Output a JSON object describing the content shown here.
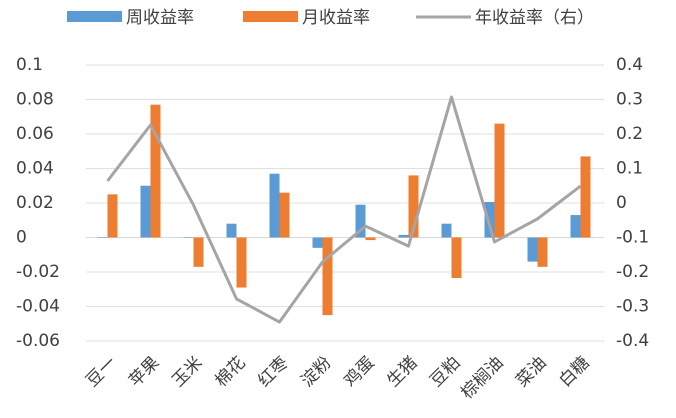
{
  "chart_data": {
    "type": "bar_line",
    "categories": [
      "豆一",
      "苹果",
      "玉米",
      "棉花",
      "红枣",
      "淀粉",
      "鸡蛋",
      "生猪",
      "豆粕",
      "棕榈油",
      "菜油",
      "白糖"
    ],
    "series": [
      {
        "name": "周收益率",
        "type": "bar",
        "color": "#5b9bd5",
        "values": [
          0,
          0.03,
          0,
          0.008,
          0.037,
          -0.006,
          0.019,
          0.0015,
          0.008,
          0.0206,
          -0.014,
          0.013
        ]
      },
      {
        "name": "月收益率",
        "type": "bar",
        "color": "#ed7d31",
        "values": [
          0.025,
          0.077,
          -0.017,
          -0.029,
          0.026,
          -0.045,
          -0.0015,
          0.036,
          -0.0235,
          0.066,
          -0.017,
          0.047
        ]
      },
      {
        "name": "年收益率（右）",
        "type": "line",
        "axis": "y2",
        "color": "#a5a5a5",
        "values": [
          0.064,
          0.226,
          -0.006,
          -0.278,
          -0.345,
          -0.171,
          -0.067,
          -0.125,
          0.307,
          -0.113,
          -0.046,
          0.049
        ]
      }
    ],
    "ylim": [
      -0.06,
      0.1
    ],
    "yticks": [
      -0.06,
      -0.04,
      -0.02,
      0,
      0.02,
      0.04,
      0.06,
      0.08,
      0.1
    ],
    "y2lim": [
      -0.4,
      0.4
    ],
    "y2ticks": [
      -0.4,
      -0.3,
      -0.2,
      -0.1,
      0,
      0.1,
      0.2,
      0.3,
      0.4
    ],
    "grid": true,
    "legend": "top"
  }
}
